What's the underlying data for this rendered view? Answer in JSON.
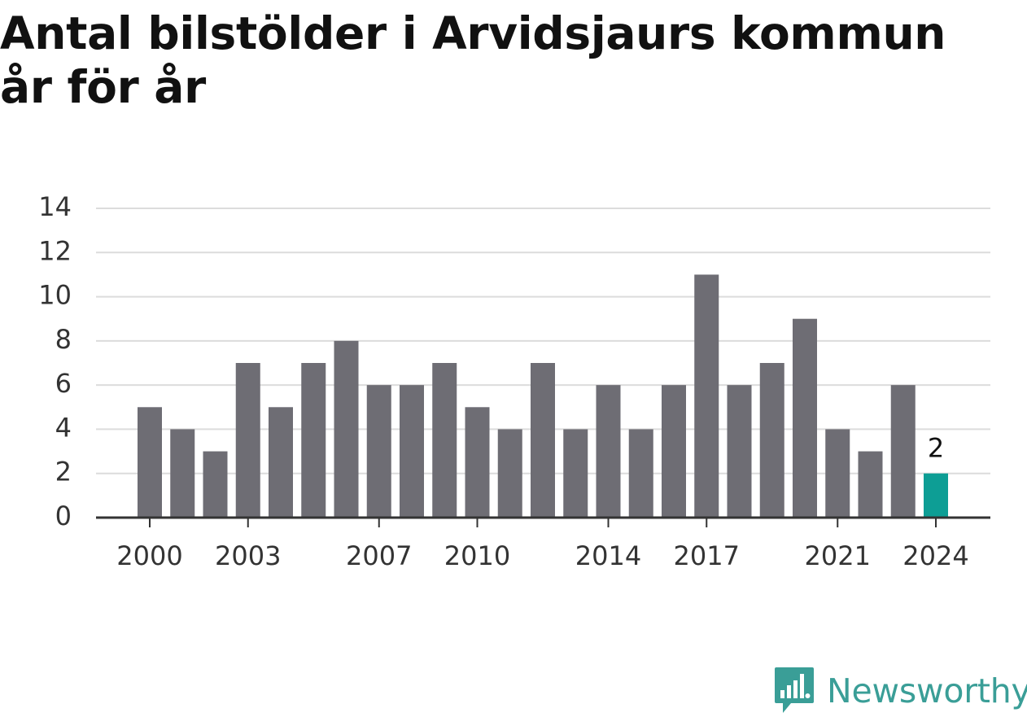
{
  "title": "Antal bilstölder i Arvidsjaurs kommun år för år",
  "brand": {
    "name": "Newsworthy",
    "icon": "bar-chart-speech-bubble-icon"
  },
  "colors": {
    "bar": "#6e6d74",
    "highlight": "#0d9e95",
    "grid": "#dcdcdc",
    "axis": "#333333",
    "brand": "#3a9e97"
  },
  "chart_data": {
    "type": "bar",
    "title": "Antal bilstölder i Arvidsjaurs kommun år för år",
    "xlabel": "",
    "ylabel": "",
    "categories": [
      2000,
      2001,
      2002,
      2003,
      2004,
      2005,
      2006,
      2007,
      2008,
      2009,
      2010,
      2011,
      2012,
      2013,
      2014,
      2015,
      2016,
      2017,
      2018,
      2019,
      2020,
      2021,
      2022,
      2023,
      2024
    ],
    "values": [
      5,
      4,
      3,
      7,
      5,
      7,
      8,
      6,
      6,
      7,
      5,
      4,
      7,
      4,
      6,
      4,
      6,
      11,
      6,
      7,
      9,
      4,
      3,
      6,
      2
    ],
    "x_tick_labels": [
      "2000",
      "2003",
      "2007",
      "2010",
      "2014",
      "2017",
      "2021",
      "2024"
    ],
    "y_ticks": [
      0,
      2,
      4,
      6,
      8,
      10,
      12,
      14
    ],
    "ylim": [
      0,
      14
    ],
    "grid": true,
    "highlight_category": 2024,
    "annotations": [
      {
        "category": 2024,
        "text": "2"
      }
    ]
  }
}
